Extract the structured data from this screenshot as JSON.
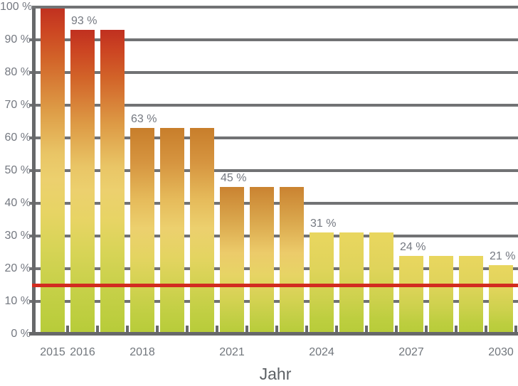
{
  "chart_data": {
    "type": "bar",
    "title": "",
    "xlabel": "Jahr",
    "ylabel": "",
    "ylim": [
      0,
      100
    ],
    "grid": true,
    "legend": false,
    "x": [
      2015,
      2016,
      2017,
      2018,
      2019,
      2020,
      2021,
      2022,
      2023,
      2024,
      2025,
      2026,
      2027,
      2028,
      2029,
      2030
    ],
    "values": [
      100,
      93,
      93,
      63,
      63,
      63,
      45,
      45,
      45,
      31,
      31,
      31,
      24,
      24,
      24,
      21
    ],
    "y_tick_labels": [
      "0 %",
      "10 %",
      "20 %",
      "30 %",
      "40 %",
      "50 %",
      "60 %",
      "70 %",
      "80 %",
      "90 %",
      "100 %"
    ],
    "x_tick_labels": [
      {
        "year": 2015,
        "label": "2015"
      },
      {
        "year": 2016,
        "label": "2016"
      },
      {
        "year": 2018,
        "label": "2018"
      },
      {
        "year": 2021,
        "label": "2021"
      },
      {
        "year": 2024,
        "label": "2024"
      },
      {
        "year": 2027,
        "label": "2027"
      },
      {
        "year": 2030,
        "label": "2030"
      }
    ],
    "bar_value_labels": [
      {
        "year": 2016,
        "label": "93 %"
      },
      {
        "year": 2018,
        "label": "63 %"
      },
      {
        "year": 2021,
        "label": "45 %"
      },
      {
        "year": 2024,
        "label": "31 %"
      },
      {
        "year": 2027,
        "label": "24 %"
      },
      {
        "year": 2030,
        "label": "21 %"
      }
    ],
    "reference_line": {
      "value": 15,
      "color": "#d22b20"
    },
    "colors": {
      "grid": "#717274",
      "axis": "#67686a",
      "tick_label": "#747880",
      "xlabel_title": "#5d6165",
      "bar_top_high": "#c03020",
      "bar_top_mid": "#c87e2b",
      "bar_top_low": "#e9d65f",
      "bar_bottom": "#b7cc39"
    }
  }
}
